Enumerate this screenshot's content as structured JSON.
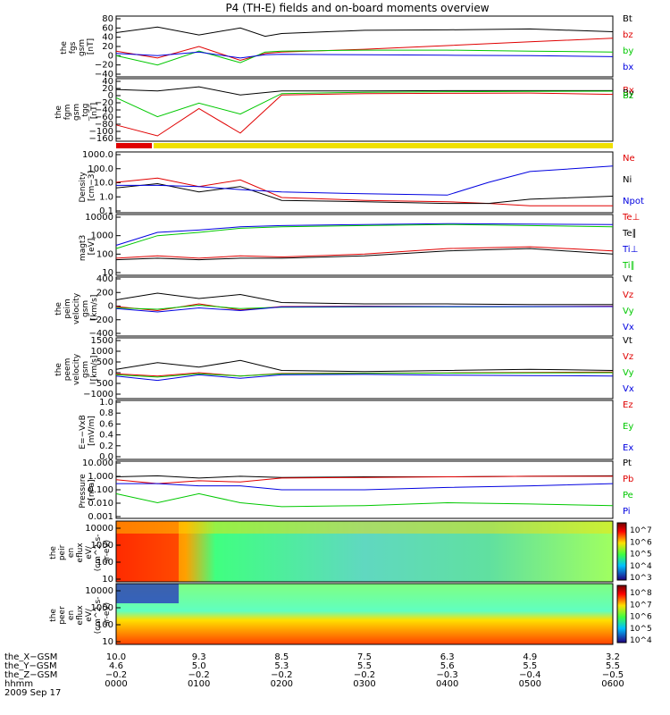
{
  "title": "P4 (TH-E) fields and on-board moments overview",
  "colors": {
    "black": "#000000",
    "red": "#e00000",
    "green": "#00c800",
    "blue": "#0000e0",
    "yellow": "#f0e000",
    "bar_red": "#e00000"
  },
  "chart_data": [
    {
      "type": "line",
      "panel": "the_fgs_gsm",
      "ylabel_lines": [
        "the",
        "fgs",
        "gsm",
        "[nT]"
      ],
      "ylim": [
        -40,
        80
      ],
      "yticks": [
        "80",
        "60",
        "40",
        "20",
        "0",
        "−20",
        "−40"
      ],
      "legend": [
        {
          "label": "Bt",
          "color": "#000000"
        },
        {
          "label": "bz",
          "color": "#e00000"
        },
        {
          "label": "by",
          "color": "#00c800"
        },
        {
          "label": "bx",
          "color": "#0000e0"
        }
      ],
      "series": [
        {
          "color": "#000000",
          "x": [
            0,
            0.5,
            1,
            1.5,
            1.8,
            2,
            3,
            4,
            5,
            6
          ],
          "y": [
            50,
            62,
            45,
            60,
            42,
            48,
            55,
            56,
            58,
            52
          ]
        },
        {
          "color": "#e00000",
          "x": [
            0,
            0.5,
            1,
            1.5,
            1.8,
            2,
            3,
            4,
            5,
            6
          ],
          "y": [
            10,
            -5,
            20,
            -10,
            5,
            8,
            14,
            22,
            30,
            38
          ]
        },
        {
          "color": "#00c800",
          "x": [
            0,
            0.5,
            1,
            1.5,
            1.8,
            2,
            3,
            4,
            5,
            6
          ],
          "y": [
            0,
            -20,
            10,
            -15,
            8,
            10,
            12,
            12,
            10,
            8
          ]
        },
        {
          "color": "#0000e0",
          "x": [
            0,
            0.5,
            1,
            1.5,
            1.8,
            2,
            3,
            4,
            5,
            6
          ],
          "y": [
            5,
            0,
            8,
            -5,
            2,
            3,
            2,
            1,
            0,
            -2
          ]
        }
      ]
    },
    {
      "type": "line",
      "panel": "the_fgm_gsm",
      "ylabel_lines": [
        "the",
        "fgm",
        "gsm",
        "_tgg",
        "[nT]"
      ],
      "ylim": [
        -170,
        40
      ],
      "yticks": [
        "40",
        "20",
        "0",
        "−20",
        "−40",
        "−60",
        "−80",
        "−100",
        "−160"
      ],
      "legend": [
        {
          "label": "Bx",
          "color": "#e00000"
        },
        {
          "label": "By",
          "color": "#000000"
        },
        {
          "label": "Bz",
          "color": "#00c800"
        }
      ],
      "series": [
        {
          "color": "#000000",
          "x": [
            0,
            0.5,
            1,
            1.5,
            2,
            3,
            4,
            5,
            6
          ],
          "y": [
            10,
            5,
            20,
            -10,
            5,
            5,
            6,
            6,
            6
          ]
        },
        {
          "color": "#00c800",
          "x": [
            0,
            0.5,
            1,
            1.5,
            2,
            3,
            4,
            5,
            6
          ],
          "y": [
            -20,
            -90,
            -40,
            -80,
            -5,
            0,
            2,
            3,
            4
          ]
        },
        {
          "color": "#e00000",
          "x": [
            0,
            0.5,
            1,
            1.5,
            2,
            3,
            4,
            5,
            6
          ],
          "y": [
            -120,
            -160,
            -60,
            -150,
            -10,
            -5,
            -4,
            -3,
            -8
          ]
        }
      ]
    },
    {
      "type": "line",
      "panel": "density",
      "ylabel_lines": [
        "Density",
        "[cm−3]"
      ],
      "log": true,
      "ylim": [
        0.1,
        1000
      ],
      "yticks": [
        "1000.0",
        "100.0",
        "10.0",
        "1.0",
        "0.1"
      ],
      "legend": [
        {
          "label": "Ne",
          "color": "#e00000"
        },
        {
          "label": "Ni",
          "color": "#000000"
        },
        {
          "label": "Npot",
          "color": "#0000e0"
        }
      ],
      "series": [
        {
          "color": "#e00000",
          "x": [
            0,
            0.5,
            1,
            1.5,
            2,
            3,
            4,
            4.5,
            5,
            6
          ],
          "y": [
            10,
            20,
            5,
            15,
            0.8,
            0.5,
            0.4,
            0.3,
            0.2,
            0.2
          ]
        },
        {
          "color": "#000000",
          "x": [
            0,
            0.5,
            1,
            1.5,
            2,
            3,
            4,
            4.5,
            5,
            6
          ],
          "y": [
            4,
            8,
            2,
            5,
            0.5,
            0.4,
            0.3,
            0.3,
            0.6,
            1.0
          ]
        },
        {
          "color": "#0000e0",
          "x": [
            0,
            0.5,
            1,
            1.5,
            2,
            3,
            4,
            4.5,
            5,
            6
          ],
          "y": [
            6,
            6,
            5,
            3,
            2,
            1.5,
            1.2,
            10,
            60,
            150
          ]
        }
      ]
    },
    {
      "type": "line",
      "panel": "temperature",
      "ylabel_lines": [
        "magt3",
        "[eV]"
      ],
      "log": true,
      "ylim": [
        10,
        10000
      ],
      "yticks": [
        "10000",
        "1000",
        "100",
        "10"
      ],
      "legend": [
        {
          "label": "Te⊥",
          "color": "#e00000"
        },
        {
          "label": "Te∥",
          "color": "#000000"
        },
        {
          "label": "Ti⊥",
          "color": "#0000e0"
        },
        {
          "label": "Ti∥",
          "color": "#00c800"
        }
      ],
      "series": [
        {
          "color": "#0000e0",
          "x": [
            0,
            0.5,
            1,
            1.5,
            2,
            3,
            4,
            5,
            6
          ],
          "y": [
            300,
            1500,
            2000,
            3000,
            3500,
            4000,
            4500,
            4200,
            4000
          ]
        },
        {
          "color": "#00c800",
          "x": [
            0,
            0.5,
            1,
            1.5,
            2,
            3,
            4,
            5,
            6
          ],
          "y": [
            200,
            1000,
            1500,
            2500,
            3000,
            3500,
            4000,
            3500,
            3000
          ]
        },
        {
          "color": "#e00000",
          "x": [
            0,
            0.5,
            1,
            1.5,
            2,
            3,
            4,
            5,
            6
          ],
          "y": [
            60,
            80,
            60,
            80,
            70,
            100,
            200,
            250,
            150
          ]
        },
        {
          "color": "#000000",
          "x": [
            0,
            0.5,
            1,
            1.5,
            2,
            3,
            4,
            5,
            6
          ],
          "y": [
            50,
            60,
            50,
            60,
            60,
            80,
            150,
            200,
            100
          ]
        }
      ]
    },
    {
      "type": "line",
      "panel": "peim_velocity",
      "ylabel_lines": [
        "the",
        "peim",
        "velocity",
        "gsm",
        "[km/s]"
      ],
      "ylim": [
        -400,
        400
      ],
      "yticks": [
        "400",
        "200",
        "0",
        "−200",
        "−400"
      ],
      "legend": [
        {
          "label": "Vt",
          "color": "#000000"
        },
        {
          "label": "Vz",
          "color": "#e00000"
        },
        {
          "label": "Vy",
          "color": "#00c800"
        },
        {
          "label": "Vx",
          "color": "#0000e0"
        }
      ],
      "series": [
        {
          "color": "#000000",
          "x": [
            0,
            0.5,
            1,
            1.5,
            2,
            3,
            4,
            5,
            6
          ],
          "y": [
            100,
            200,
            120,
            180,
            60,
            40,
            40,
            30,
            30
          ]
        },
        {
          "color": "#e00000",
          "x": [
            0,
            0.5,
            1,
            1.5,
            2,
            3,
            4,
            5,
            6
          ],
          "y": [
            0,
            -60,
            40,
            -50,
            0,
            5,
            0,
            0,
            5
          ]
        },
        {
          "color": "#00c800",
          "x": [
            0,
            0.5,
            1,
            1.5,
            2,
            3,
            4,
            5,
            6
          ],
          "y": [
            -20,
            -40,
            20,
            -30,
            -10,
            -5,
            -5,
            -3,
            0
          ]
        },
        {
          "color": "#0000e0",
          "x": [
            0,
            0.5,
            1,
            1.5,
            2,
            3,
            4,
            5,
            6
          ],
          "y": [
            -30,
            -80,
            -20,
            -60,
            -5,
            0,
            0,
            0,
            0
          ]
        }
      ]
    },
    {
      "type": "line",
      "panel": "peem_velocity",
      "ylabel_lines": [
        "the",
        "peem",
        "velocity",
        "gsm",
        "[km/s]"
      ],
      "ylim": [
        -1000,
        1500
      ],
      "yticks": [
        "1500",
        "1000",
        "500",
        "0",
        "−500",
        "−1000"
      ],
      "legend": [
        {
          "label": "Vt",
          "color": "#000000"
        },
        {
          "label": "Vz",
          "color": "#e00000"
        },
        {
          "label": "Vy",
          "color": "#00c800"
        },
        {
          "label": "Vx",
          "color": "#0000e0"
        }
      ],
      "series": [
        {
          "color": "#000000",
          "x": [
            0,
            0.5,
            1,
            1.5,
            2,
            3,
            4,
            5,
            6
          ],
          "y": [
            200,
            500,
            300,
            600,
            150,
            100,
            150,
            200,
            150
          ]
        },
        {
          "color": "#e00000",
          "x": [
            0,
            0.5,
            1,
            1.5,
            2,
            3,
            4,
            5,
            6
          ],
          "y": [
            0,
            -100,
            50,
            -100,
            20,
            30,
            40,
            60,
            80
          ]
        },
        {
          "color": "#00c800",
          "x": [
            0,
            0.5,
            1,
            1.5,
            2,
            3,
            4,
            5,
            6
          ],
          "y": [
            -50,
            -150,
            0,
            -100,
            0,
            20,
            30,
            40,
            50
          ]
        },
        {
          "color": "#0000e0",
          "x": [
            0,
            0.5,
            1,
            1.5,
            2,
            3,
            4,
            5,
            6
          ],
          "y": [
            -100,
            -300,
            -50,
            -200,
            -50,
            -30,
            -60,
            -80,
            -100
          ]
        }
      ]
    },
    {
      "type": "line",
      "panel": "efield",
      "ylabel_lines": [
        "E=−VxB",
        "[mV/m]"
      ],
      "ylim": [
        0,
        1
      ],
      "yticks": [
        "1.0",
        "0.8",
        "0.6",
        "0.4",
        "0.2",
        "0.0"
      ],
      "legend": [
        {
          "label": "Ez",
          "color": "#e00000"
        },
        {
          "label": "Ey",
          "color": "#00c800"
        },
        {
          "label": "Ex",
          "color": "#0000e0"
        }
      ],
      "series": []
    },
    {
      "type": "line",
      "panel": "pressure",
      "ylabel_lines": [
        "Pressure",
        "[nPa]"
      ],
      "log": true,
      "ylim": [
        0.001,
        10
      ],
      "yticks": [
        "10.000",
        "1.000",
        "0.100",
        "0.010",
        "0.001"
      ],
      "legend": [
        {
          "label": "Pt",
          "color": "#000000"
        },
        {
          "label": "Pb",
          "color": "#e00000"
        },
        {
          "label": "Pe",
          "color": "#00c800"
        },
        {
          "label": "Pi",
          "color": "#0000e0"
        }
      ],
      "series": [
        {
          "color": "#000000",
          "x": [
            0,
            0.5,
            1,
            1.5,
            2,
            3,
            4,
            5,
            6
          ],
          "y": [
            1.0,
            1.2,
            0.8,
            1.1,
            0.9,
            1.0,
            1.0,
            1.1,
            1.2
          ]
        },
        {
          "color": "#e00000",
          "x": [
            0,
            0.5,
            1,
            1.5,
            2,
            3,
            4,
            5,
            6
          ],
          "y": [
            0.6,
            0.3,
            0.5,
            0.4,
            0.8,
            0.9,
            1.0,
            1.1,
            1.1
          ]
        },
        {
          "color": "#0000e0",
          "x": [
            0,
            0.5,
            1,
            1.5,
            2,
            3,
            4,
            5,
            6
          ],
          "y": [
            0.3,
            0.3,
            0.2,
            0.2,
            0.1,
            0.1,
            0.15,
            0.2,
            0.3
          ]
        },
        {
          "color": "#00c800",
          "x": [
            0,
            0.5,
            1,
            1.5,
            2,
            3,
            4,
            5,
            6
          ],
          "y": [
            0.05,
            0.01,
            0.05,
            0.01,
            0.005,
            0.006,
            0.01,
            0.008,
            0.006
          ]
        }
      ]
    },
    {
      "type": "heatmap",
      "panel": "peir_en_eflux",
      "ylabel_lines": [
        "the",
        "peir",
        "en",
        "eflux",
        "eV/",
        "(cm^2-s-",
        "sr-eV)"
      ],
      "log": true,
      "ylim": [
        10,
        20000
      ],
      "yticks": [
        "10000",
        "1000",
        "100",
        "10"
      ],
      "colorbar_labels": [
        "10^7",
        "10^6",
        "10^5",
        "10^4",
        "10^3"
      ]
    },
    {
      "type": "heatmap",
      "panel": "peer_en_eflux",
      "ylabel_lines": [
        "the",
        "peer",
        "en",
        "eflux",
        "eV/",
        "(cm^2-s-",
        "sr-eV)"
      ],
      "log": true,
      "ylim": [
        10,
        20000
      ],
      "yticks": [
        "10000",
        "1000",
        "100",
        "10"
      ],
      "colorbar_labels": [
        "10^8",
        "10^7",
        "10^6",
        "10^5",
        "10^4"
      ]
    }
  ],
  "xaxis": {
    "rows": [
      {
        "label": "the_X−GSM",
        "values": [
          "10.0",
          "9.3",
          "8.5",
          "7.5",
          "6.3",
          "4.9",
          "3.2"
        ]
      },
      {
        "label": "the_Y−GSM",
        "values": [
          "4.6",
          "5.0",
          "5.3",
          "5.5",
          "5.6",
          "5.5",
          "5.5"
        ]
      },
      {
        "label": "the_Z−GSM",
        "values": [
          "−0.2",
          "−0.2",
          "−0.2",
          "−0.2",
          "−0.3",
          "−0.4",
          "−0.5"
        ]
      },
      {
        "label": "hhmm",
        "values": [
          "0000",
          "0100",
          "0200",
          "0300",
          "0400",
          "0500",
          "0600"
        ]
      }
    ],
    "date": "2009 Sep 17"
  }
}
